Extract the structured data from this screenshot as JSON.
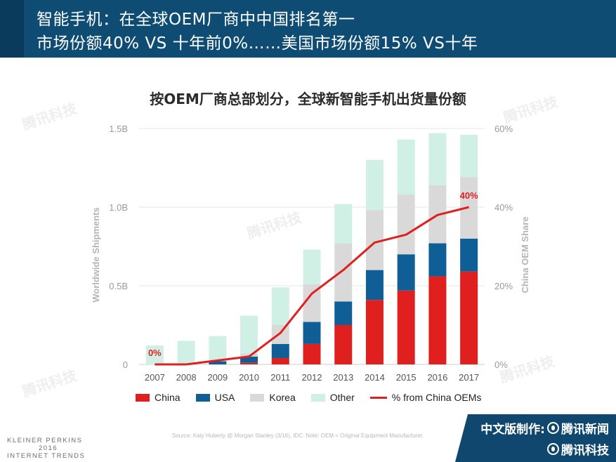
{
  "header": {
    "line1": "智能手机：在全球OEM厂商中中国排名第一",
    "line2": "市场份额40% VS 十年前0%……美国市场份额15% VS十年"
  },
  "chart_title": "按OEM厂商总部划分，全球新智能手机出货量份额",
  "chart_data": {
    "type": "bar",
    "stacked": true,
    "categories": [
      "2007",
      "2008",
      "2009",
      "2010",
      "2011",
      "2012",
      "2013",
      "2014",
      "2015",
      "2016",
      "2017"
    ],
    "series": [
      {
        "name": "China",
        "color": "#e01f1f",
        "values": [
          0.0,
          0.0,
          0.0,
          0.01,
          0.04,
          0.13,
          0.25,
          0.41,
          0.47,
          0.56,
          0.59
        ]
      },
      {
        "name": "USA",
        "color": "#0f5f96",
        "values": [
          0.0,
          0.0,
          0.02,
          0.04,
          0.09,
          0.14,
          0.15,
          0.19,
          0.23,
          0.21,
          0.21
        ]
      },
      {
        "name": "Korea",
        "color": "#d9d9d9",
        "values": [
          0.0,
          0.0,
          0.0,
          0.02,
          0.12,
          0.24,
          0.37,
          0.38,
          0.38,
          0.37,
          0.39
        ]
      },
      {
        "name": "Other",
        "color": "#d0f0e5",
        "values": [
          0.12,
          0.15,
          0.16,
          0.24,
          0.24,
          0.22,
          0.25,
          0.32,
          0.35,
          0.33,
          0.27
        ]
      }
    ],
    "line_series": {
      "name": "% from China OEMs",
      "color": "#e01f1f",
      "values": [
        0,
        0,
        1,
        2,
        8,
        18,
        24,
        31,
        33,
        38,
        40
      ]
    },
    "y_left": {
      "label": "Worldwide Shipments",
      "ticks": [
        "0",
        "0.5B",
        "1.0B",
        "1.5B"
      ],
      "ylim": [
        0,
        1.5
      ]
    },
    "y_right": {
      "label": "China OEM Share",
      "ticks": [
        "0%",
        "20%",
        "40%",
        "60%"
      ],
      "ylim": [
        0,
        60
      ]
    },
    "annotations": {
      "start": "0%",
      "end": "40%"
    },
    "legend_position": "bottom",
    "grid": true
  },
  "source": "Source: Katy Huberty @ Morgan Stanley (3/16), IDC. Note: OEM = Original Equipment Manufacturer.",
  "footer_brand": {
    "line1": "KLEINER PERKINS",
    "line2": "2016",
    "line3": "INTERNET TRENDS"
  },
  "credit": {
    "label": "中文版制作:",
    "org1": "腾讯新闻",
    "org2": "腾讯科技"
  },
  "watermark": "腾讯科技"
}
